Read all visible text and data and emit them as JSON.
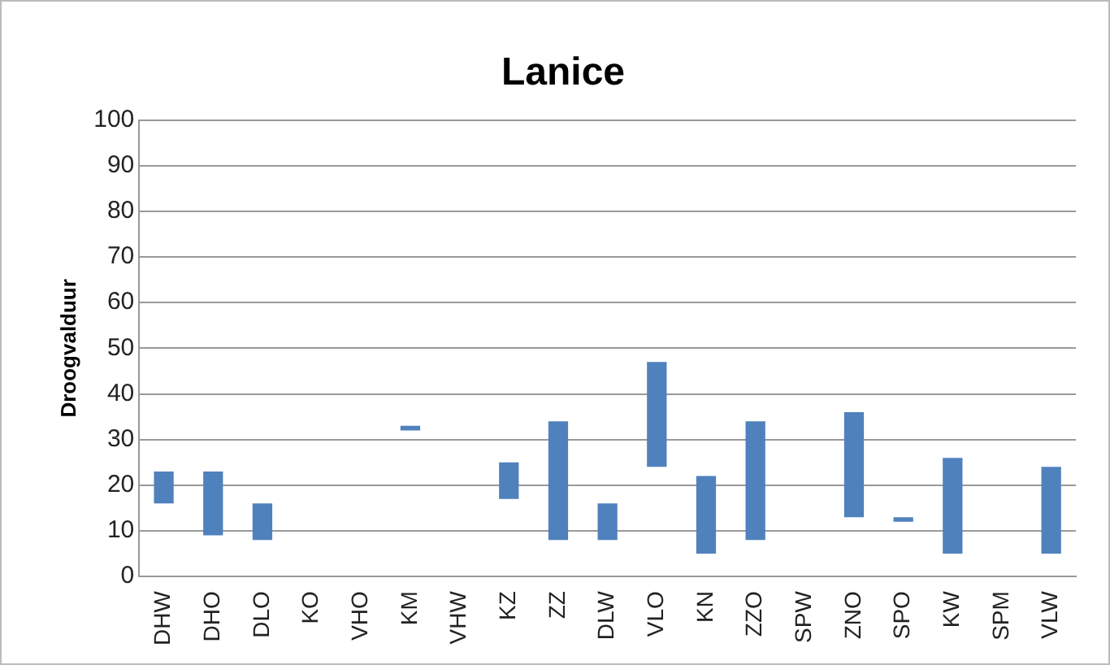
{
  "chart_data": {
    "type": "bar",
    "title": "Lanice",
    "ylabel": "Droogvalduur",
    "categories": [
      "DHW",
      "DHO",
      "DLO",
      "KO",
      "VHO",
      "KM",
      "VHW",
      "KZ",
      "ZZ",
      "DLW",
      "VLO",
      "KN",
      "ZZO",
      "SPW",
      "ZNO",
      "SPO",
      "KW",
      "SPM",
      "VLW"
    ],
    "base": [
      16,
      9,
      8,
      null,
      null,
      32,
      null,
      17,
      8,
      8,
      24,
      5,
      8,
      null,
      13,
      12,
      5,
      null,
      5
    ],
    "values": [
      7,
      14,
      8,
      null,
      null,
      1,
      null,
      8,
      26,
      8,
      23,
      17,
      26,
      null,
      23,
      1,
      21,
      null,
      19
    ],
    "color": "#4f81bd",
    "ylim": [
      0,
      100
    ],
    "yticks": [
      0,
      10,
      20,
      30,
      40,
      50,
      60,
      70,
      80,
      90,
      100
    ],
    "grid": "y"
  }
}
